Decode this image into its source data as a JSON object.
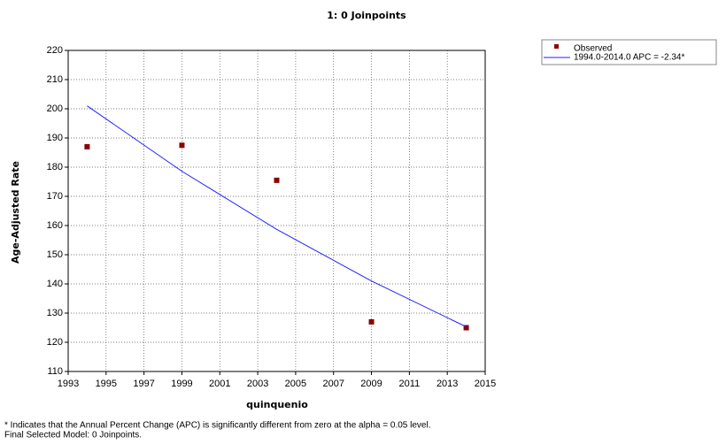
{
  "chart_data": {
    "type": "line",
    "title": "1: 0 Joinpoints",
    "x_label": "quinquenio",
    "y_label": "Age-Adjusted Rate",
    "x": [
      1994,
      1999,
      2004,
      2009,
      2014
    ],
    "series": [
      {
        "name": "Observed",
        "color": "#8b0000",
        "style": "markers",
        "values": [
          187,
          187.5,
          175.5,
          127,
          125
        ]
      },
      {
        "name": "1994.0-2014.0 APC  = -2.34*",
        "color": "#1f1fff",
        "style": "line",
        "values": [
          201,
          178.6,
          158.7,
          141,
          125.3
        ]
      }
    ],
    "xlim": [
      1993,
      2015
    ],
    "xticks": [
      1993,
      1995,
      1997,
      1999,
      2001,
      2003,
      2005,
      2007,
      2009,
      2011,
      2013,
      2015
    ],
    "ylim": [
      110,
      220
    ],
    "yticks": [
      110,
      120,
      130,
      140,
      150,
      160,
      170,
      180,
      190,
      200,
      210,
      220
    ],
    "grid": true,
    "legend": "top-right",
    "notes": [
      "* Indicates that the Annual Percent Change (APC) is significantly different from zero at the alpha = 0.05 level.",
      "Final Selected Model: 0 Joinpoints."
    ]
  }
}
